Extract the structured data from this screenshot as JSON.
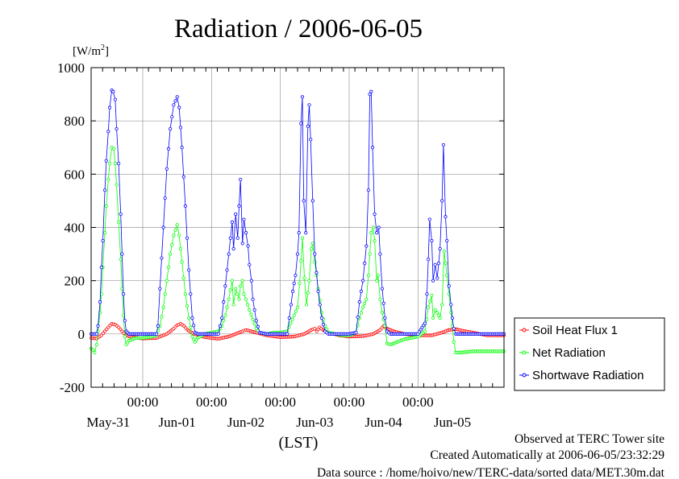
{
  "chart_data": {
    "type": "line",
    "title": "Radiation / 2006-06-05",
    "y_unit": "[W/m",
    "y_unit_sup": "2",
    "y_unit_close": "]",
    "ylim": [
      -200,
      1000
    ],
    "yticks": [
      -200,
      0,
      200,
      400,
      600,
      800,
      1000
    ],
    "x_start_day": 0.25,
    "x_end_day": 6.25,
    "time_tick_label": "00:00",
    "time_ticks_day": [
      1,
      2,
      3,
      4,
      5
    ],
    "day_labels": [
      {
        "day": 0.5,
        "label": "May-31"
      },
      {
        "day": 1.5,
        "label": "Jun-01"
      },
      {
        "day": 2.5,
        "label": "Jun-02"
      },
      {
        "day": 3.5,
        "label": "Jun-03"
      },
      {
        "day": 4.5,
        "label": "Jun-04"
      },
      {
        "day": 5.5,
        "label": "Jun-05"
      }
    ],
    "xlabel": "(LST)",
    "grid": true,
    "legend_position": "right",
    "series": [
      {
        "name": "Soil Heat Flux 1",
        "color": "#ff0000",
        "points": [
          [
            0.25,
            -15
          ],
          [
            0.33,
            -17
          ],
          [
            0.4,
            -5
          ],
          [
            0.45,
            10
          ],
          [
            0.5,
            25
          ],
          [
            0.55,
            38
          ],
          [
            0.6,
            35
          ],
          [
            0.65,
            25
          ],
          [
            0.7,
            10
          ],
          [
            0.75,
            -5
          ],
          [
            0.85,
            -12
          ],
          [
            1.0,
            -17
          ],
          [
            1.2,
            -15
          ],
          [
            1.35,
            0
          ],
          [
            1.45,
            20
          ],
          [
            1.5,
            33
          ],
          [
            1.55,
            38
          ],
          [
            1.6,
            30
          ],
          [
            1.65,
            15
          ],
          [
            1.75,
            0
          ],
          [
            1.9,
            -12
          ],
          [
            2.1,
            -18
          ],
          [
            2.25,
            -10
          ],
          [
            2.35,
            0
          ],
          [
            2.45,
            10
          ],
          [
            2.5,
            15
          ],
          [
            2.55,
            12
          ],
          [
            2.65,
            5
          ],
          [
            2.8,
            -5
          ],
          [
            3.0,
            -12
          ],
          [
            3.2,
            -10
          ],
          [
            3.35,
            0
          ],
          [
            3.45,
            15
          ],
          [
            3.5,
            20
          ],
          [
            3.53,
            10
          ],
          [
            3.57,
            25
          ],
          [
            3.62,
            15
          ],
          [
            3.7,
            5
          ],
          [
            3.85,
            -5
          ],
          [
            4.0,
            -10
          ],
          [
            4.2,
            -8
          ],
          [
            4.35,
            0
          ],
          [
            4.45,
            15
          ],
          [
            4.5,
            30
          ],
          [
            4.55,
            20
          ],
          [
            4.65,
            10
          ],
          [
            4.8,
            0
          ],
          [
            5.0,
            -5
          ],
          [
            5.2,
            -5
          ],
          [
            5.35,
            5
          ],
          [
            5.45,
            15
          ],
          [
            5.55,
            18
          ],
          [
            5.65,
            12
          ],
          [
            5.8,
            5
          ],
          [
            6.0,
            -5
          ],
          [
            6.15,
            -5
          ],
          [
            6.25,
            -5
          ]
        ]
      },
      {
        "name": "Net Radiation",
        "color": "#00ff00",
        "points": [
          [
            0.25,
            -55
          ],
          [
            0.28,
            -60
          ],
          [
            0.3,
            -70
          ],
          [
            0.33,
            -40
          ],
          [
            0.35,
            10
          ],
          [
            0.38,
            80
          ],
          [
            0.4,
            150
          ],
          [
            0.42,
            250
          ],
          [
            0.45,
            380
          ],
          [
            0.47,
            480
          ],
          [
            0.5,
            580
          ],
          [
            0.52,
            640
          ],
          [
            0.55,
            700
          ],
          [
            0.58,
            695
          ],
          [
            0.6,
            640
          ],
          [
            0.62,
            560
          ],
          [
            0.65,
            420
          ],
          [
            0.68,
            280
          ],
          [
            0.7,
            170
          ],
          [
            0.72,
            70
          ],
          [
            0.74,
            -10
          ],
          [
            0.76,
            -40
          ],
          [
            0.8,
            -25
          ],
          [
            0.9,
            -15
          ],
          [
            1.0,
            -15
          ],
          [
            1.1,
            -12
          ],
          [
            1.2,
            -5
          ],
          [
            1.25,
            30
          ],
          [
            1.3,
            100
          ],
          [
            1.35,
            200
          ],
          [
            1.4,
            300
          ],
          [
            1.45,
            370
          ],
          [
            1.5,
            410
          ],
          [
            1.53,
            370
          ],
          [
            1.57,
            270
          ],
          [
            1.62,
            150
          ],
          [
            1.67,
            60
          ],
          [
            1.72,
            -10
          ],
          [
            1.76,
            -30
          ],
          [
            1.8,
            -15
          ],
          [
            1.9,
            0
          ],
          [
            2.0,
            5
          ],
          [
            2.1,
            10
          ],
          [
            2.15,
            30
          ],
          [
            2.2,
            70
          ],
          [
            2.25,
            130
          ],
          [
            2.3,
            200
          ],
          [
            2.32,
            110
          ],
          [
            2.35,
            170
          ],
          [
            2.4,
            130
          ],
          [
            2.42,
            180
          ],
          [
            2.45,
            200
          ],
          [
            2.47,
            150
          ],
          [
            2.5,
            130
          ],
          [
            2.55,
            90
          ],
          [
            2.6,
            55
          ],
          [
            2.65,
            20
          ],
          [
            2.7,
            5
          ],
          [
            2.8,
            0
          ],
          [
            2.9,
            5
          ],
          [
            3.0,
            5
          ],
          [
            3.1,
            10
          ],
          [
            3.15,
            40
          ],
          [
            3.2,
            70
          ],
          [
            3.25,
            100
          ],
          [
            3.28,
            190
          ],
          [
            3.32,
            360
          ],
          [
            3.35,
            210
          ],
          [
            3.38,
            110
          ],
          [
            3.42,
            200
          ],
          [
            3.45,
            320
          ],
          [
            3.47,
            340
          ],
          [
            3.5,
            270
          ],
          [
            3.55,
            170
          ],
          [
            3.6,
            80
          ],
          [
            3.65,
            30
          ],
          [
            3.7,
            5
          ],
          [
            3.8,
            0
          ],
          [
            3.9,
            -5
          ],
          [
            4.0,
            -5
          ],
          [
            4.1,
            5
          ],
          [
            4.15,
            60
          ],
          [
            4.2,
            100
          ],
          [
            4.25,
            130
          ],
          [
            4.28,
            220
          ],
          [
            4.32,
            380
          ],
          [
            4.35,
            400
          ],
          [
            4.37,
            350
          ],
          [
            4.4,
            200
          ],
          [
            4.42,
            220
          ],
          [
            4.45,
            130
          ],
          [
            4.48,
            80
          ],
          [
            4.52,
            30
          ],
          [
            4.55,
            -35
          ],
          [
            4.6,
            -40
          ],
          [
            4.7,
            -30
          ],
          [
            4.8,
            -20
          ],
          [
            4.9,
            -15
          ],
          [
            5.0,
            -10
          ],
          [
            5.1,
            10
          ],
          [
            5.15,
            100
          ],
          [
            5.2,
            145
          ],
          [
            5.22,
            60
          ],
          [
            5.25,
            90
          ],
          [
            5.28,
            80
          ],
          [
            5.32,
            60
          ],
          [
            5.35,
            110
          ],
          [
            5.38,
            310
          ],
          [
            5.42,
            220
          ],
          [
            5.45,
            150
          ],
          [
            5.48,
            80
          ],
          [
            5.5,
            30
          ],
          [
            5.52,
            -30
          ],
          [
            5.55,
            -70
          ],
          [
            5.6,
            -70
          ],
          [
            5.7,
            -68
          ],
          [
            5.8,
            -65
          ],
          [
            6.25,
            -65
          ]
        ]
      },
      {
        "name": "Shortwave Radiation",
        "color": "#0000ff",
        "points": [
          [
            0.25,
            0
          ],
          [
            0.33,
            0
          ],
          [
            0.35,
            30
          ],
          [
            0.38,
            120
          ],
          [
            0.4,
            250
          ],
          [
            0.42,
            350
          ],
          [
            0.45,
            540
          ],
          [
            0.47,
            650
          ],
          [
            0.5,
            760
          ],
          [
            0.52,
            850
          ],
          [
            0.55,
            915
          ],
          [
            0.57,
            910
          ],
          [
            0.6,
            880
          ],
          [
            0.62,
            770
          ],
          [
            0.65,
            640
          ],
          [
            0.68,
            450
          ],
          [
            0.7,
            300
          ],
          [
            0.72,
            150
          ],
          [
            0.74,
            50
          ],
          [
            0.76,
            10
          ],
          [
            0.8,
            0
          ],
          [
            1.0,
            0
          ],
          [
            1.2,
            0
          ],
          [
            1.22,
            30
          ],
          [
            1.25,
            170
          ],
          [
            1.3,
            400
          ],
          [
            1.35,
            620
          ],
          [
            1.4,
            770
          ],
          [
            1.45,
            860
          ],
          [
            1.5,
            890
          ],
          [
            1.53,
            850
          ],
          [
            1.57,
            700
          ],
          [
            1.62,
            480
          ],
          [
            1.67,
            240
          ],
          [
            1.72,
            60
          ],
          [
            1.76,
            5
          ],
          [
            1.8,
            0
          ],
          [
            2.0,
            0
          ],
          [
            2.1,
            0
          ],
          [
            2.15,
            60
          ],
          [
            2.2,
            180
          ],
          [
            2.25,
            300
          ],
          [
            2.3,
            420
          ],
          [
            2.32,
            320
          ],
          [
            2.35,
            450
          ],
          [
            2.38,
            360
          ],
          [
            2.4,
            480
          ],
          [
            2.42,
            580
          ],
          [
            2.45,
            340
          ],
          [
            2.47,
            430
          ],
          [
            2.5,
            380
          ],
          [
            2.53,
            330
          ],
          [
            2.55,
            260
          ],
          [
            2.58,
            200
          ],
          [
            2.6,
            130
          ],
          [
            2.65,
            50
          ],
          [
            2.7,
            5
          ],
          [
            2.8,
            0
          ],
          [
            3.0,
            0
          ],
          [
            3.1,
            0
          ],
          [
            3.13,
            60
          ],
          [
            3.18,
            160
          ],
          [
            3.22,
            220
          ],
          [
            3.25,
            300
          ],
          [
            3.27,
            380
          ],
          [
            3.3,
            790
          ],
          [
            3.32,
            890
          ],
          [
            3.34,
            500
          ],
          [
            3.37,
            380
          ],
          [
            3.4,
            780
          ],
          [
            3.42,
            860
          ],
          [
            3.44,
            730
          ],
          [
            3.47,
            500
          ],
          [
            3.5,
            300
          ],
          [
            3.55,
            160
          ],
          [
            3.6,
            60
          ],
          [
            3.65,
            10
          ],
          [
            3.7,
            0
          ],
          [
            4.0,
            0
          ],
          [
            4.1,
            5
          ],
          [
            4.15,
            120
          ],
          [
            4.2,
            200
          ],
          [
            4.25,
            330
          ],
          [
            4.28,
            540
          ],
          [
            4.3,
            900
          ],
          [
            4.32,
            910
          ],
          [
            4.34,
            700
          ],
          [
            4.37,
            450
          ],
          [
            4.4,
            380
          ],
          [
            4.43,
            400
          ],
          [
            4.45,
            300
          ],
          [
            4.48,
            170
          ],
          [
            4.52,
            60
          ],
          [
            4.55,
            10
          ],
          [
            4.6,
            0
          ],
          [
            5.0,
            0
          ],
          [
            5.1,
            40
          ],
          [
            5.13,
            150
          ],
          [
            5.15,
            280
          ],
          [
            5.17,
            430
          ],
          [
            5.2,
            350
          ],
          [
            5.22,
            200
          ],
          [
            5.25,
            260
          ],
          [
            5.28,
            210
          ],
          [
            5.32,
            320
          ],
          [
            5.35,
            500
          ],
          [
            5.37,
            710
          ],
          [
            5.4,
            440
          ],
          [
            5.42,
            350
          ],
          [
            5.45,
            180
          ],
          [
            5.48,
            110
          ],
          [
            5.5,
            60
          ],
          [
            5.52,
            20
          ],
          [
            5.55,
            0
          ],
          [
            6.25,
            0
          ]
        ]
      }
    ]
  },
  "footer": {
    "line1": "Observed at TERC Tower site",
    "line2": "Created Automatically at 2006-06-05/23:32:29",
    "line3": "Data source : /home/hoivo/new/TERC-data/sorted  data/MET.30m.dat"
  }
}
